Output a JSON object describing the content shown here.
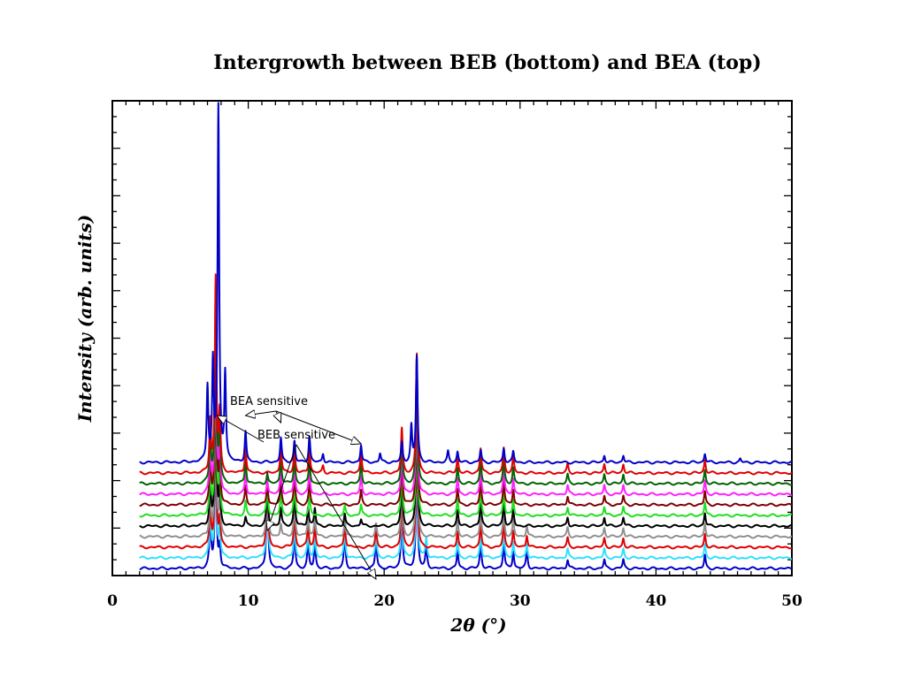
{
  "chart_data": {
    "type": "line",
    "title": "Intergrowth between BEB (bottom) and BEA (top)",
    "xlabel": "2θ (°)",
    "ylabel": "Intensity (arb. units)",
    "xlim": [
      0,
      50
    ],
    "xticks": [
      0,
      10,
      20,
      30,
      40,
      50
    ],
    "x_range": [
      2,
      50
    ],
    "y_ticks_labeled": false,
    "grid": false,
    "legend": "none",
    "layout": "stacked patterns, bottom = BEB, top = BEA",
    "series": [
      {
        "color": "#0000c8",
        "peaks": [
          [
            7.2,
            60
          ],
          [
            7.6,
            145
          ],
          [
            7.9,
            25
          ],
          [
            11.4,
            110
          ],
          [
            13.4,
            45
          ],
          [
            14.4,
            30
          ],
          [
            14.9,
            30
          ],
          [
            17.1,
            40
          ],
          [
            19.4,
            35
          ],
          [
            21.3,
            70
          ],
          [
            22.4,
            130
          ],
          [
            23.1,
            25
          ],
          [
            25.4,
            20
          ],
          [
            27.1,
            30
          ],
          [
            28.8,
            30
          ],
          [
            29.5,
            20
          ],
          [
            30.5,
            20
          ],
          [
            33.5,
            10
          ],
          [
            36.2,
            10
          ],
          [
            37.6,
            10
          ],
          [
            43.6,
            15
          ]
        ]
      },
      {
        "color": "#30e0ff",
        "peaks": [
          [
            7.2,
            55
          ],
          [
            7.6,
            140
          ],
          [
            7.9,
            30
          ],
          [
            11.4,
            95
          ],
          [
            13.4,
            40
          ],
          [
            14.4,
            28
          ],
          [
            14.9,
            28
          ],
          [
            17.1,
            34
          ],
          [
            19.4,
            30
          ],
          [
            21.3,
            65
          ],
          [
            22.4,
            130
          ],
          [
            23.1,
            22
          ],
          [
            25.4,
            18
          ],
          [
            27.1,
            28
          ],
          [
            28.8,
            28
          ],
          [
            29.5,
            18
          ],
          [
            30.5,
            16
          ],
          [
            33.5,
            10
          ],
          [
            36.2,
            10
          ],
          [
            37.6,
            10
          ],
          [
            43.6,
            15
          ]
        ]
      },
      {
        "color": "#e00000",
        "peaks": [
          [
            7.2,
            52
          ],
          [
            7.6,
            150
          ],
          [
            7.9,
            30
          ],
          [
            11.4,
            80
          ],
          [
            13.4,
            40
          ],
          [
            14.4,
            26
          ],
          [
            14.9,
            24
          ],
          [
            17.1,
            28
          ],
          [
            19.4,
            22
          ],
          [
            21.3,
            62
          ],
          [
            22.4,
            132
          ],
          [
            25.4,
            18
          ],
          [
            27.1,
            28
          ],
          [
            28.8,
            28
          ],
          [
            29.5,
            18
          ],
          [
            30.5,
            14
          ],
          [
            33.5,
            10
          ],
          [
            36.2,
            10
          ],
          [
            37.6,
            10
          ],
          [
            43.6,
            15
          ]
        ]
      },
      {
        "color": "#909090",
        "peaks": [
          [
            7.2,
            50
          ],
          [
            7.6,
            160
          ],
          [
            7.9,
            35
          ],
          [
            11.4,
            60
          ],
          [
            12.4,
            15
          ],
          [
            13.4,
            40
          ],
          [
            14.4,
            24
          ],
          [
            14.9,
            22
          ],
          [
            17.1,
            20
          ],
          [
            19.4,
            15
          ],
          [
            21.3,
            60
          ],
          [
            22.4,
            135
          ],
          [
            25.4,
            18
          ],
          [
            27.1,
            28
          ],
          [
            28.8,
            28
          ],
          [
            29.5,
            18
          ],
          [
            30.5,
            12
          ],
          [
            33.5,
            10
          ],
          [
            36.2,
            10
          ],
          [
            37.6,
            10
          ],
          [
            43.6,
            15
          ]
        ]
      },
      {
        "color": "#000000",
        "peaks": [
          [
            7.2,
            50
          ],
          [
            7.6,
            170
          ],
          [
            7.9,
            40
          ],
          [
            9.8,
            10
          ],
          [
            11.4,
            45
          ],
          [
            12.4,
            20
          ],
          [
            13.4,
            38
          ],
          [
            14.4,
            22
          ],
          [
            14.9,
            20
          ],
          [
            17.1,
            14
          ],
          [
            18.3,
            8
          ],
          [
            21.3,
            60
          ],
          [
            22.4,
            135
          ],
          [
            25.4,
            18
          ],
          [
            27.1,
            28
          ],
          [
            28.8,
            28
          ],
          [
            29.5,
            18
          ],
          [
            33.5,
            10
          ],
          [
            36.2,
            10
          ],
          [
            37.6,
            10
          ],
          [
            43.6,
            15
          ]
        ]
      },
      {
        "color": "#20e020",
        "peaks": [
          [
            7.2,
            50
          ],
          [
            7.6,
            180
          ],
          [
            7.9,
            45
          ],
          [
            9.8,
            15
          ],
          [
            11.4,
            35
          ],
          [
            12.4,
            24
          ],
          [
            13.4,
            36
          ],
          [
            14.5,
            22
          ],
          [
            17.1,
            10
          ],
          [
            18.3,
            12
          ],
          [
            21.3,
            58
          ],
          [
            22.4,
            135
          ],
          [
            25.4,
            18
          ],
          [
            27.1,
            28
          ],
          [
            28.8,
            28
          ],
          [
            29.5,
            18
          ],
          [
            33.5,
            10
          ],
          [
            36.2,
            10
          ],
          [
            37.6,
            10
          ],
          [
            43.6,
            15
          ]
        ]
      },
      {
        "color": "#800000",
        "peaks": [
          [
            7.2,
            52
          ],
          [
            7.6,
            190
          ],
          [
            7.9,
            50
          ],
          [
            9.8,
            20
          ],
          [
            11.4,
            25
          ],
          [
            12.4,
            26
          ],
          [
            13.4,
            34
          ],
          [
            14.5,
            24
          ],
          [
            18.3,
            16
          ],
          [
            21.3,
            56
          ],
          [
            22.4,
            135
          ],
          [
            25.4,
            18
          ],
          [
            27.1,
            28
          ],
          [
            28.8,
            28
          ],
          [
            29.5,
            18
          ],
          [
            33.5,
            10
          ],
          [
            36.2,
            10
          ],
          [
            37.6,
            10
          ],
          [
            43.6,
            15
          ]
        ]
      },
      {
        "color": "#ff20ff",
        "peaks": [
          [
            7.2,
            54
          ],
          [
            7.6,
            200
          ],
          [
            7.9,
            55
          ],
          [
            9.8,
            24
          ],
          [
            11.4,
            16
          ],
          [
            12.4,
            28
          ],
          [
            13.4,
            32
          ],
          [
            14.5,
            26
          ],
          [
            18.3,
            20
          ],
          [
            21.3,
            54
          ],
          [
            22.4,
            135
          ],
          [
            25.4,
            18
          ],
          [
            27.1,
            28
          ],
          [
            28.8,
            28
          ],
          [
            29.5,
            18
          ],
          [
            33.5,
            10
          ],
          [
            36.2,
            10
          ],
          [
            37.6,
            10
          ],
          [
            43.6,
            15
          ]
        ]
      },
      {
        "color": "#006400",
        "peaks": [
          [
            7.2,
            56
          ],
          [
            7.6,
            210
          ],
          [
            7.9,
            60
          ],
          [
            9.8,
            28
          ],
          [
            11.4,
            10
          ],
          [
            12.4,
            30
          ],
          [
            13.4,
            30
          ],
          [
            14.5,
            28
          ],
          [
            18.3,
            24
          ],
          [
            21.3,
            52
          ],
          [
            22.4,
            135
          ],
          [
            25.4,
            18
          ],
          [
            27.1,
            28
          ],
          [
            28.8,
            28
          ],
          [
            29.5,
            18
          ],
          [
            33.5,
            10
          ],
          [
            36.2,
            10
          ],
          [
            37.6,
            10
          ],
          [
            43.6,
            15
          ]
        ]
      },
      {
        "color": "#e00000",
        "peaks": [
          [
            7.2,
            58
          ],
          [
            7.6,
            220
          ],
          [
            7.9,
            65
          ],
          [
            9.8,
            30
          ],
          [
            12.4,
            32
          ],
          [
            13.4,
            28
          ],
          [
            14.5,
            30
          ],
          [
            15.5,
            8
          ],
          [
            18.3,
            26
          ],
          [
            21.3,
            50
          ],
          [
            22.4,
            135
          ],
          [
            25.4,
            18
          ],
          [
            27.1,
            28
          ],
          [
            28.8,
            28
          ],
          [
            29.5,
            18
          ],
          [
            33.5,
            10
          ],
          [
            36.2,
            10
          ],
          [
            37.6,
            10
          ],
          [
            43.6,
            15
          ]
        ]
      },
      {
        "color": "#0000c8",
        "peaks": [
          [
            7.0,
            85
          ],
          [
            7.4,
            110
          ],
          [
            7.8,
            400
          ],
          [
            8.3,
            100
          ],
          [
            9.8,
            35
          ],
          [
            12.4,
            28
          ],
          [
            13.4,
            24
          ],
          [
            14.5,
            30
          ],
          [
            15.5,
            10
          ],
          [
            18.3,
            20
          ],
          [
            19.7,
            10
          ],
          [
            21.3,
            22
          ],
          [
            22.0,
            40
          ],
          [
            22.4,
            120
          ],
          [
            24.7,
            12
          ],
          [
            25.4,
            12
          ],
          [
            27.1,
            14
          ],
          [
            28.8,
            16
          ],
          [
            29.5,
            12
          ],
          [
            36.2,
            8
          ],
          [
            37.6,
            8
          ],
          [
            43.6,
            10
          ],
          [
            46.2,
            4
          ]
        ]
      }
    ],
    "annotations": [
      {
        "text": "BEA sensitive",
        "arrow_targets_x": [
          9.8,
          18.3,
          12.4
        ]
      },
      {
        "text": "BEB sensitive",
        "arrow_targets_x": [
          11.4,
          19.4,
          7.7
        ]
      }
    ]
  }
}
